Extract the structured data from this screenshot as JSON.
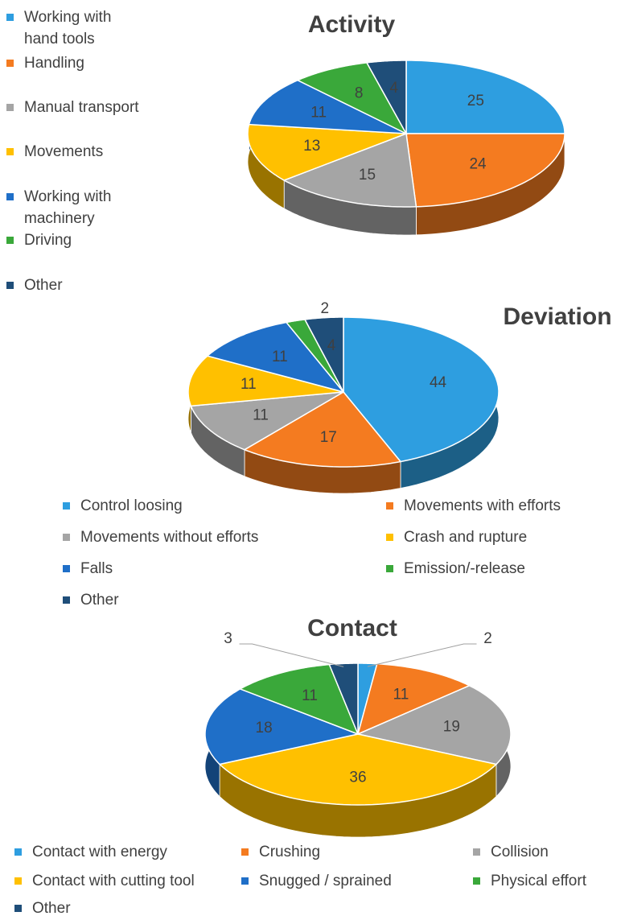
{
  "chart_data": [
    {
      "type": "pie",
      "title": "Activity",
      "categories": [
        "Working with hand tools",
        "Handling",
        "Manual transport",
        "Movements",
        "Working with machinery",
        "Driving",
        "Other"
      ],
      "values": [
        25,
        24,
        15,
        13,
        11,
        8,
        4
      ],
      "colors": [
        "#2e9ee0",
        "#f47b20",
        "#a5a5a5",
        "#ffc000",
        "#1f6fc8",
        "#3aa83a",
        "#1f4e79"
      ]
    },
    {
      "type": "pie",
      "title": "Deviation",
      "categories": [
        "Control loosing",
        "Movements with efforts",
        "Movements without efforts",
        "Crash and rupture",
        "Falls",
        "Emission/-release",
        "Other"
      ],
      "values": [
        44,
        17,
        11,
        11,
        11,
        2,
        4
      ],
      "colors": [
        "#2e9ee0",
        "#f47b20",
        "#a5a5a5",
        "#ffc000",
        "#1f6fc8",
        "#3aa83a",
        "#1f4e79"
      ]
    },
    {
      "type": "pie",
      "title": "Contact",
      "categories": [
        "Contact with energy",
        "Crushing",
        "Collision",
        "Contact with cutting tool",
        "Snugged / sprained",
        "Physical effort",
        "Other"
      ],
      "values": [
        2,
        11,
        19,
        36,
        18,
        11,
        3
      ],
      "colors": [
        "#2e9ee0",
        "#f47b20",
        "#a5a5a5",
        "#ffc000",
        "#1f6fc8",
        "#3aa83a",
        "#1f4e79"
      ]
    }
  ]
}
